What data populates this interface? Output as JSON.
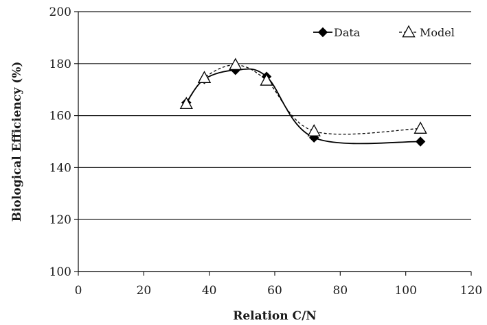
{
  "chart_data": {
    "type": "line",
    "xlabel": "Relation C/N",
    "ylabel": "Biological Efficiency (%)",
    "xlim": [
      0,
      120
    ],
    "ylim": [
      100,
      200
    ],
    "x_ticks": [
      0,
      20,
      40,
      60,
      80,
      100,
      120
    ],
    "y_ticks": [
      100,
      120,
      140,
      160,
      180,
      200
    ],
    "grid": "horizontal",
    "legend_position": "top-right",
    "series": [
      {
        "name": "Data",
        "marker": "diamond",
        "line_style": "solid",
        "color": "#000000",
        "x": [
          33,
          38.5,
          48,
          57.5,
          72,
          104.5
        ],
        "y": [
          165,
          174,
          177.5,
          175,
          151.5,
          150
        ]
      },
      {
        "name": "Model",
        "marker": "triangle-open",
        "line_style": "dashed",
        "color": "#000000",
        "x": [
          33,
          38.5,
          48,
          57.5,
          72,
          104.5
        ],
        "y": [
          164.5,
          174.5,
          179.5,
          173.5,
          154,
          155
        ]
      }
    ]
  }
}
